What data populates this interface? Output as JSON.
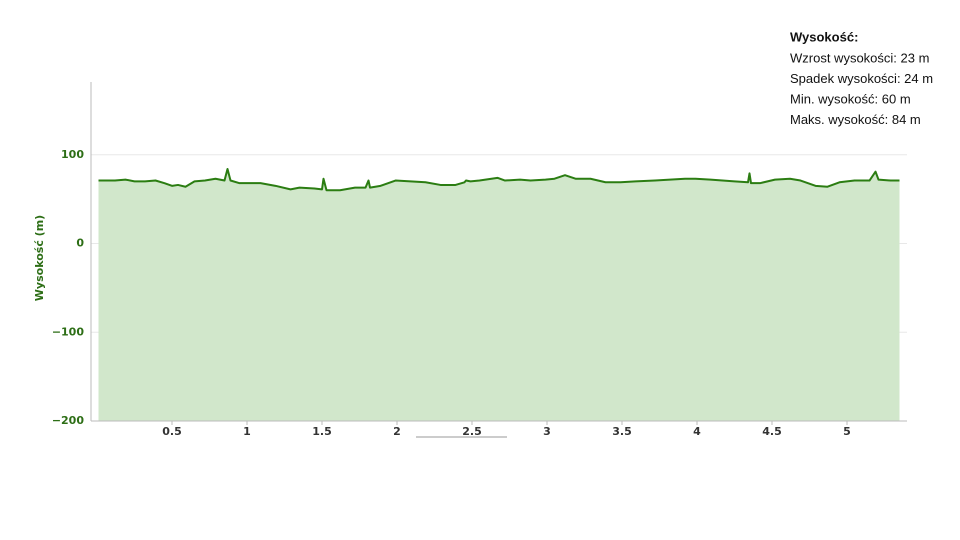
{
  "chart_data": {
    "type": "area",
    "y_label": "Wysokość (m)",
    "x": [
      0.01,
      0.12,
      0.19,
      0.25,
      0.32,
      0.39,
      0.45,
      0.5,
      0.54,
      0.59,
      0.65,
      0.72,
      0.79,
      0.85,
      0.87,
      0.89,
      0.95,
      1.09,
      1.19,
      1.29,
      1.35,
      1.45,
      1.5,
      1.51,
      1.53,
      1.62,
      1.72,
      1.79,
      1.81,
      1.82,
      1.89,
      1.99,
      2.09,
      2.19,
      2.29,
      2.39,
      2.45,
      2.46,
      2.49,
      2.55,
      2.67,
      2.72,
      2.82,
      2.89,
      2.99,
      3.05,
      3.12,
      3.19,
      3.29,
      3.39,
      3.49,
      3.59,
      3.72,
      3.82,
      3.92,
      3.99,
      4.09,
      4.25,
      4.34,
      4.35,
      4.36,
      4.42,
      4.52,
      4.62,
      4.69,
      4.79,
      4.87,
      4.95,
      5.05,
      5.15,
      5.19,
      5.21,
      5.29,
      5.35
    ],
    "series": [
      {
        "color": "#2b7d12",
        "fill": "#d1e7cb",
        "values": [
          71,
          71,
          72,
          70,
          70,
          71,
          68,
          65,
          66,
          64,
          70,
          71,
          73,
          71,
          84,
          71,
          68,
          68,
          65,
          61,
          63,
          62,
          61,
          73,
          60,
          60,
          63,
          63,
          71,
          63,
          65,
          71,
          70,
          69,
          66,
          66,
          69,
          71,
          70,
          71,
          74,
          71,
          72,
          71,
          72,
          73,
          77,
          73,
          73,
          69,
          69,
          70,
          71,
          72,
          73,
          73,
          72,
          70,
          69,
          79,
          68,
          68,
          72,
          73,
          71,
          65,
          64,
          69,
          71,
          71,
          81,
          72,
          71,
          71
        ]
      }
    ],
    "xlim": [
      0,
      5.4
    ],
    "xticks": [
      0.5,
      1,
      1.5,
      2,
      2.5,
      3,
      3.5,
      4,
      4.5,
      5
    ],
    "ylim": [
      -200,
      182
    ],
    "yticks": [
      100,
      0,
      {
        "value": -100,
        "label": "−100"
      },
      {
        "value": -200,
        "label": "−200"
      }
    ],
    "grid": true,
    "info": {
      "title": "Wysokość:",
      "lines": [
        "Wzrost wysokości: 23 m",
        "Spadek wysokości: 24 m",
        "Min. wysokość: 60 m",
        "Maks. wysokość: 84 m"
      ]
    }
  }
}
